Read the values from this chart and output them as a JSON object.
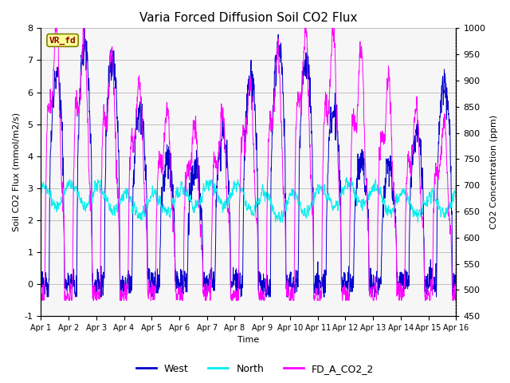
{
  "title": "Varia Forced Diffusion Soil CO2 Flux",
  "xlabel": "Time",
  "ylabel_left": "Soil CO2 Flux (mmol/m2/s)",
  "ylabel_right": "CO2 Concentration (ppm)",
  "ylim_left": [
    -1.0,
    8.0
  ],
  "ylim_right": [
    450,
    1000
  ],
  "yticks_left": [
    -1.0,
    0.0,
    1.0,
    2.0,
    3.0,
    4.0,
    5.0,
    6.0,
    7.0,
    8.0
  ],
  "yticks_right": [
    450,
    500,
    550,
    600,
    650,
    700,
    750,
    800,
    850,
    900,
    950,
    1000
  ],
  "color_west": "#0000CC",
  "color_north": "#00EEEE",
  "color_co2": "#FF00FF",
  "color_shading": "#DCDCDC",
  "annotation_text": "VR_fd",
  "annotation_color": "#8B0000",
  "annotation_bg": "#FFFF99",
  "n_days": 15,
  "n_points_per_day": 144,
  "seed": 12345,
  "legend_labels": [
    "West",
    "North",
    "FD_A_CO2_2"
  ],
  "legend_colors": [
    "#0000CC",
    "#00EEEE",
    "#FF00FF"
  ],
  "title_fontsize": 11,
  "label_fontsize": 8,
  "tick_fontsize": 8,
  "legend_fontsize": 9
}
